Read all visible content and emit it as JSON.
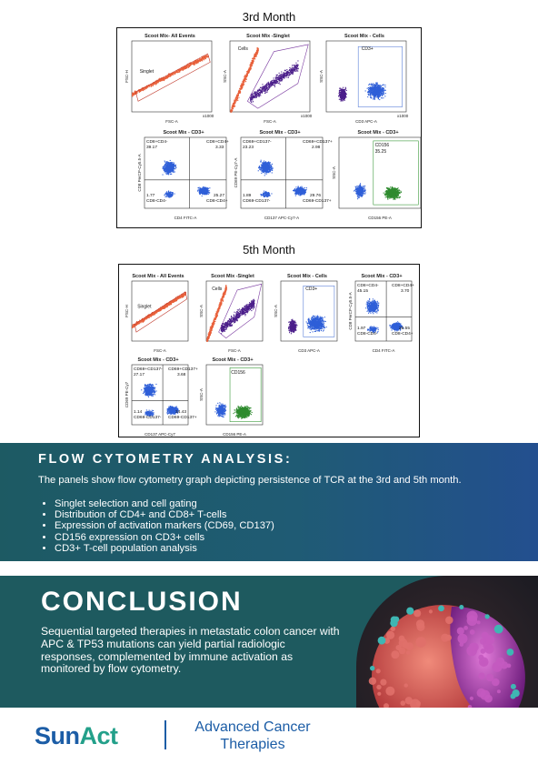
{
  "month3": {
    "title": "3rd Month",
    "plots": [
      {
        "title": "Scoot Mix- All Events",
        "xlabel": "FSC-A",
        "ylabel": "FSC-H",
        "gate": "Singlet",
        "mult": "x1000"
      },
      {
        "title": "Scoot Mix -Singlet",
        "xlabel": "FSC-A",
        "ylabel": "SSC-A",
        "gate": "Cells",
        "mult": "x1000"
      },
      {
        "title": "Scoot Mix - Cells",
        "xlabel": "CD3 APC-A",
        "ylabel": "SSC-A",
        "gate": "CD3+",
        "mult": "x1000"
      },
      {
        "title": "Scoot Mix - CD3+",
        "xlabel": "CD4 FITC-A",
        "ylabel": "CD8 PerCP-Cy5.5-A",
        "q": [
          "CD8+CD4-",
          "CD8+CD4+",
          "CD8-CD4-",
          "CD8-CD4+"
        ],
        "qv": [
          "39.17",
          "3.33",
          "1.77",
          "25.27"
        ]
      },
      {
        "title": "Scoot Mix - CD3+",
        "xlabel": "CD137 APC-Cy7-A",
        "ylabel": "CD69 PE-Cy7-A",
        "q": [
          "CD69+CD137-",
          "CD69+CD137+",
          "CD69-CD137-",
          "CD69-CD137+"
        ],
        "qv": [
          "23.23",
          "2.98",
          "1.89",
          "29.76"
        ]
      },
      {
        "title": "Scoot Mix - CD3+",
        "xlabel": "CD156 PE-A",
        "ylabel": "SSC-A",
        "gate": "CD156",
        "gv": "35.25"
      }
    ]
  },
  "month5": {
    "title": "5th Month",
    "plots": [
      {
        "title": "Scoot Mix - All Events",
        "xlabel": "FSC-A",
        "ylabel": "FSC-H",
        "gate": "Singlet"
      },
      {
        "title": "Scoot Mix -Singlet",
        "xlabel": "FSC-A",
        "ylabel": "SSC-A",
        "gate": "Cells"
      },
      {
        "title": "Scoot Mix - Cells",
        "xlabel": "CD3 APC-A",
        "ylabel": "SSC-A",
        "gate": "CD3+"
      },
      {
        "title": "Scoot Mix - CD3+",
        "xlabel": "CD4 FITC-A",
        "ylabel": "CD8 PerCP-Cy5.5-A",
        "q": [
          "CD8+CD4-",
          "CD8+CD4+",
          "CD8-CD4-",
          "CD8-CD4+"
        ],
        "qv": [
          "45.15",
          "3.70",
          "1.97",
          "29.55"
        ]
      },
      {
        "title": "Scoot Mix - CD3+",
        "xlabel": "CD137 APC-Cy7",
        "ylabel": "CD69 PE-Cy7",
        "q": [
          "CD69+CD137-",
          "CD69+CD137+",
          "CD69-CD137-",
          "CD69-CD137+"
        ],
        "qv": [
          "27.17",
          "3.68",
          "1.14",
          "34.43"
        ]
      },
      {
        "title": "Scoot Mix - CD3+",
        "xlabel": "CD156 PE-A",
        "ylabel": "SSC-A",
        "gate": "CD156"
      }
    ]
  },
  "colors": {
    "blue": "#2f5fd8",
    "orange": "#e8603a",
    "purple": "#4b1e8a",
    "green": "#2e8b2e",
    "gate_purple": "#7a3aa0"
  },
  "analysis": {
    "heading": "FLOW CYTOMETRY ANALYSIS:",
    "lead": "The panels show flow cytometry graph depicting persistence of TCR at the 3rd and 5th month.",
    "bullets": [
      "Singlet selection and cell gating",
      "Distribution of CD4+ and CD8+ T-cells",
      "Expression of activation markers (CD69, CD137)",
      "CD156 expression on CD3+ cells",
      "CD3+ T-cell population analysis"
    ]
  },
  "conclusion": {
    "heading": "CONCLUSION",
    "text": "Sequential targeted therapies in metastatic colon cancer with APC & TP53 mutations can yield partial radiologic responses, complemented by immune activation as monitored by flow cytometry."
  },
  "footer": {
    "logo_sun": "Sun",
    "logo_act": "Act",
    "company_line1": "Advanced Cancer",
    "company_line2": "Therapies"
  }
}
